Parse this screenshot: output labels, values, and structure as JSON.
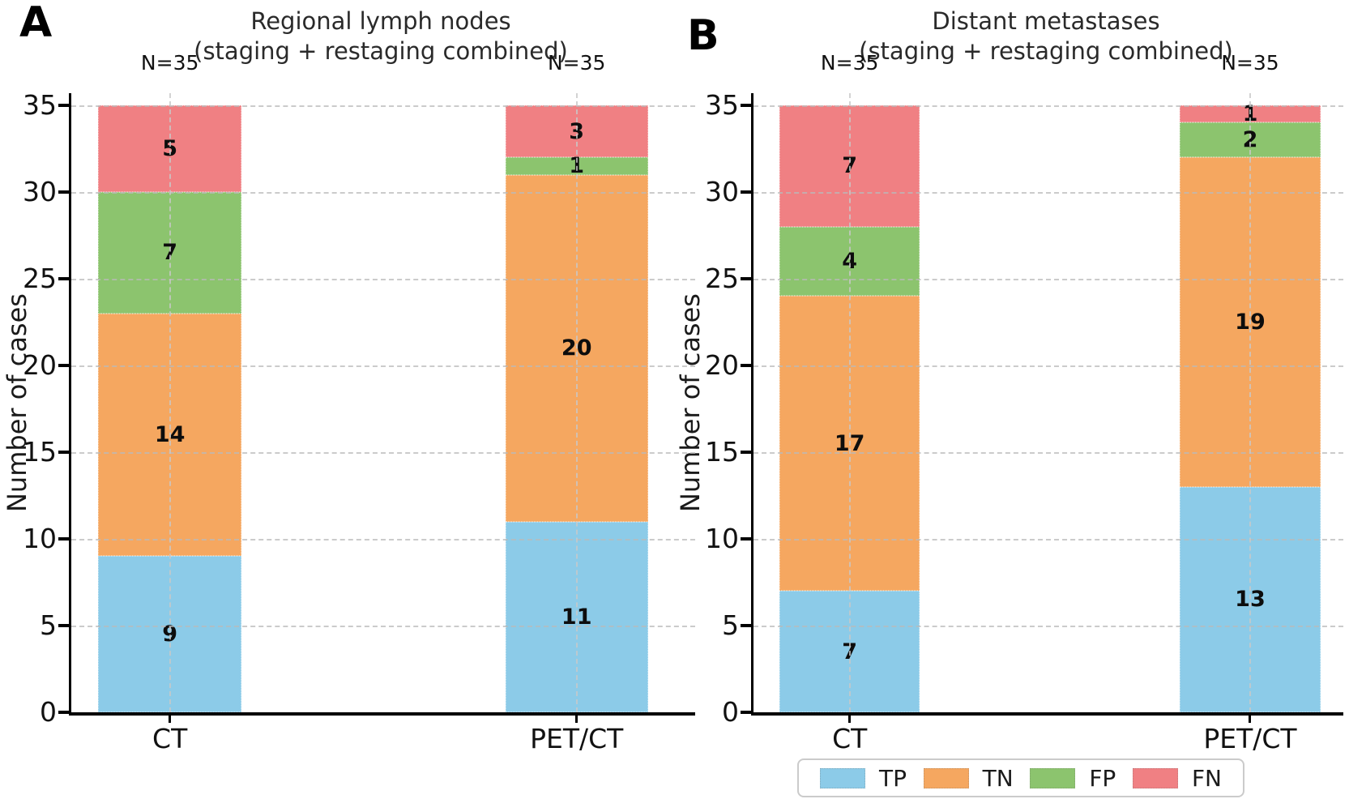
{
  "panels": [
    {
      "letter": "A",
      "title_line1": "Regional lymph nodes",
      "title_line2": "(staging + restaging combined)",
      "ylabel": "Number of cases"
    },
    {
      "letter": "B",
      "title_line1": "Distant metastases",
      "title_line2": "(staging + restaging combined)",
      "ylabel": "Number of cases"
    }
  ],
  "legend": {
    "entries": [
      {
        "label": "TP",
        "color": "#8ccbe8"
      },
      {
        "label": "TN",
        "color": "#f5a760"
      },
      {
        "label": "FP",
        "color": "#8cc46e"
      },
      {
        "label": "FN",
        "color": "#f08083"
      }
    ]
  },
  "colors": {
    "TP": "#8ccbe8",
    "TN": "#f5a760",
    "FP": "#8cc46e",
    "FN": "#f08083",
    "grid": "#bbbbbb",
    "axis": "#000000"
  },
  "chart_data": [
    {
      "type": "bar",
      "stacked": true,
      "panel": "A",
      "title": "Regional lymph nodes (staging + restaging combined)",
      "categories": [
        "CT",
        "PET/CT"
      ],
      "series": [
        {
          "name": "TP",
          "values": [
            9,
            11
          ]
        },
        {
          "name": "TN",
          "values": [
            14,
            20
          ]
        },
        {
          "name": "FP",
          "values": [
            7,
            1
          ]
        },
        {
          "name": "FN",
          "values": [
            5,
            3
          ]
        }
      ],
      "totals": [
        35,
        35
      ],
      "total_labels": [
        "N=35",
        "N=35"
      ],
      "xlabel": "",
      "ylabel": "Number of cases",
      "yticks": [
        0,
        5,
        10,
        15,
        20,
        25,
        30,
        35
      ],
      "ylim": [
        0,
        35.7
      ],
      "grid": "dashed",
      "legend_position": "figure-bottom-right"
    },
    {
      "type": "bar",
      "stacked": true,
      "panel": "B",
      "title": "Distant metastases (staging + restaging combined)",
      "categories": [
        "CT",
        "PET/CT"
      ],
      "series": [
        {
          "name": "TP",
          "values": [
            7,
            13
          ]
        },
        {
          "name": "TN",
          "values": [
            17,
            19
          ]
        },
        {
          "name": "FP",
          "values": [
            4,
            2
          ]
        },
        {
          "name": "FN",
          "values": [
            7,
            1
          ]
        }
      ],
      "totals": [
        35,
        35
      ],
      "total_labels": [
        "N=35",
        "N=35"
      ],
      "xlabel": "",
      "ylabel": "Number of cases",
      "yticks": [
        0,
        5,
        10,
        15,
        20,
        25,
        30,
        35
      ],
      "ylim": [
        0,
        35.7
      ],
      "grid": "dashed",
      "legend_position": "figure-bottom-right"
    }
  ]
}
